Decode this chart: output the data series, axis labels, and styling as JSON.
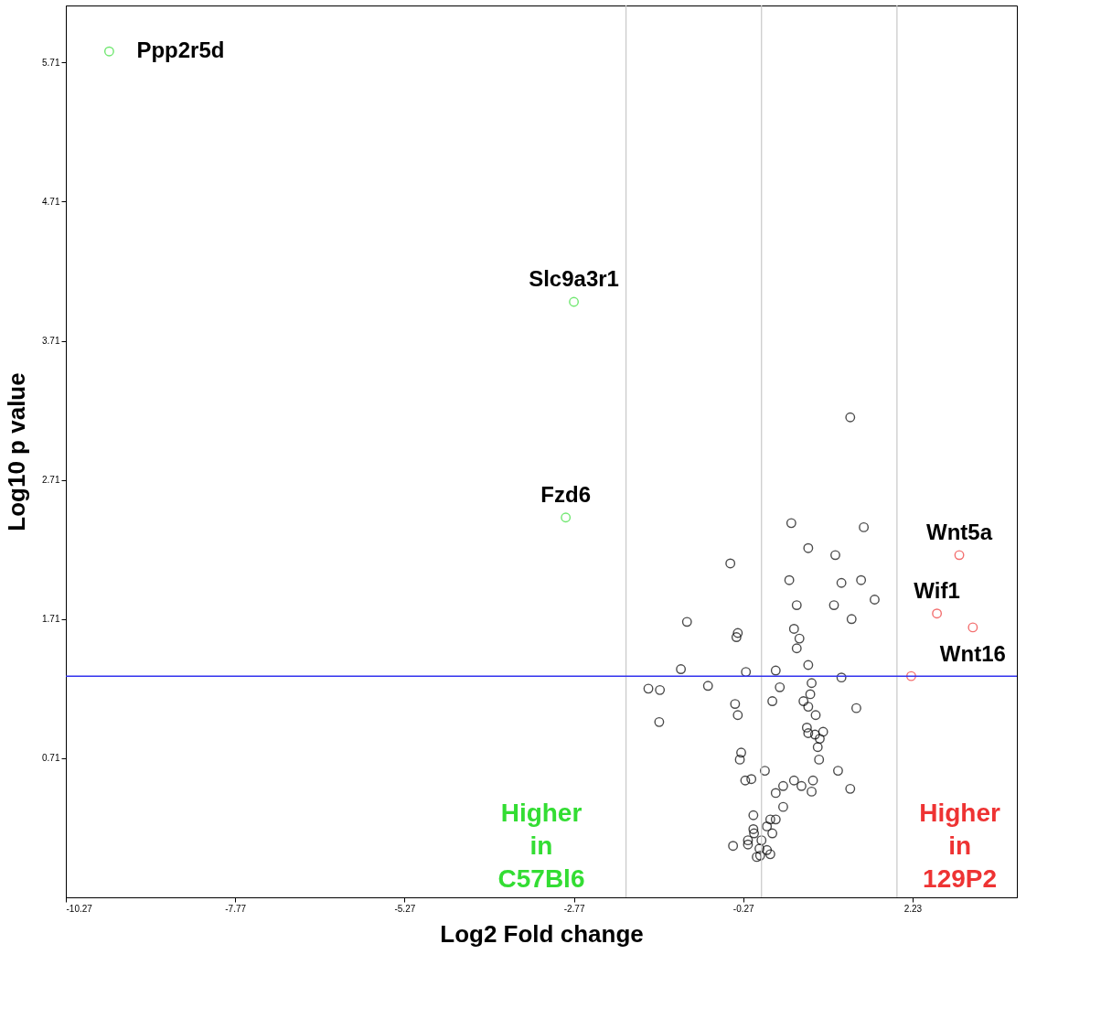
{
  "chart_data": {
    "type": "scatter",
    "xlabel": "Log2 Fold change",
    "ylabel": "Log10 p value",
    "xlim": [
      -10.27,
      3.77
    ],
    "ylim": [
      -0.29,
      6.12
    ],
    "xticks": [
      -10.27,
      -7.77,
      -5.27,
      -2.77,
      -0.27,
      2.23
    ],
    "yticks": [
      0.71,
      1.71,
      2.71,
      3.71,
      4.71,
      5.71
    ],
    "grid": false,
    "marker": "circle",
    "series": [
      {
        "color": "#000000",
        "x": [
          1.31,
          0.44,
          1.51,
          0.69,
          1.09,
          -0.46,
          0.41,
          1.18,
          1.47,
          1.67,
          0.52,
          1.07,
          -1.1,
          1.33,
          -0.35,
          -0.37,
          0.48,
          0.56,
          0.52,
          -1.19,
          -0.23,
          0.21,
          0.69,
          1.18,
          -1.67,
          -1.5,
          -0.79,
          0.27,
          0.74,
          0.72,
          -0.39,
          0.16,
          0.62,
          0.69,
          1.4,
          -0.35,
          0.8,
          -1.51,
          0.67,
          0.69,
          0.91,
          0.79,
          0.86,
          0.83,
          0.85,
          -0.3,
          -0.32,
          0.05,
          1.13,
          -0.24,
          -0.15,
          0.48,
          0.32,
          0.59,
          0.76,
          0.74,
          1.31,
          0.21,
          0.32,
          -0.12,
          0.13,
          0.21,
          -0.12,
          0.08,
          0.16,
          -0.11,
          -0.2,
          0.0,
          -0.2,
          -0.42,
          -0.03,
          0.08,
          0.13,
          -0.07,
          -0.02
        ],
        "values": [
          3.16,
          2.4,
          2.37,
          2.22,
          2.17,
          2.11,
          1.99,
          1.97,
          1.99,
          1.85,
          1.81,
          1.81,
          1.69,
          1.71,
          1.61,
          1.58,
          1.64,
          1.57,
          1.5,
          1.35,
          1.33,
          1.34,
          1.38,
          1.29,
          1.21,
          1.2,
          1.23,
          1.22,
          1.25,
          1.17,
          1.1,
          1.12,
          1.12,
          1.08,
          1.07,
          1.02,
          1.02,
          0.97,
          0.93,
          0.89,
          0.9,
          0.88,
          0.85,
          0.79,
          0.7,
          0.75,
          0.7,
          0.62,
          0.62,
          0.55,
          0.56,
          0.55,
          0.51,
          0.51,
          0.55,
          0.47,
          0.49,
          0.46,
          0.36,
          0.3,
          0.27,
          0.27,
          0.2,
          0.22,
          0.17,
          0.17,
          0.12,
          0.12,
          0.09,
          0.08,
          0.06,
          0.05,
          0.02,
          0.0,
          0.01
        ]
      },
      {
        "color": "#33dd33",
        "x": [
          -9.63,
          -2.77,
          -2.89
        ],
        "values": [
          5.79,
          3.99,
          2.44
        ]
      },
      {
        "color": "#ee3333",
        "x": [
          2.92,
          2.59,
          3.12,
          2.21
        ],
        "values": [
          2.17,
          1.75,
          1.65,
          1.3
        ]
      }
    ],
    "ref_lines": [
      {
        "axis": "x",
        "value": -2,
        "color": "#c8c8c8"
      },
      {
        "axis": "x",
        "value": 0,
        "color": "#c8c8c8"
      },
      {
        "axis": "x",
        "value": 2,
        "color": "#c8c8c8"
      },
      {
        "axis": "y",
        "value": 1.3,
        "color": "#3333ee"
      }
    ],
    "annotations": [
      {
        "text": "Ppp2r5d",
        "x": -9.63,
        "y": 5.79
      },
      {
        "text": "Slc9a3r1",
        "x": -2.77,
        "y": 3.99
      },
      {
        "text": "Fzd6",
        "x": -2.89,
        "y": 2.44
      },
      {
        "text": "Wnt5a",
        "x": 2.92,
        "y": 2.17
      },
      {
        "text": "Wif1",
        "x": 2.59,
        "y": 1.75
      },
      {
        "text": "Wnt16",
        "x": 3.12,
        "y": 1.65
      },
      "Higher in C57Bl6",
      "Higher in 129P2"
    ]
  }
}
